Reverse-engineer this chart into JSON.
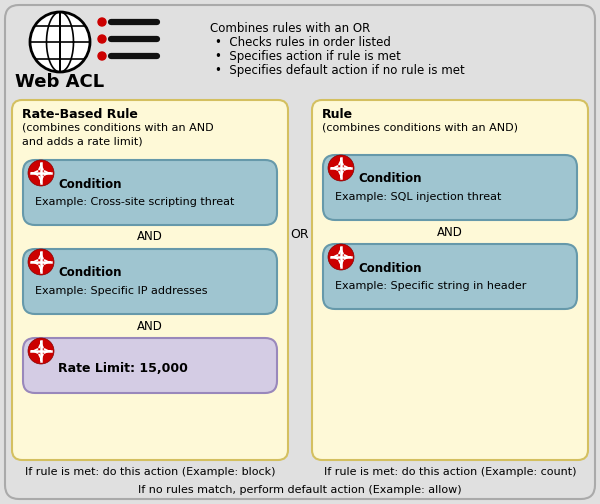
{
  "bg_color": "#e0e0e0",
  "outer_border_color": "#bbbbbb",
  "yellow_box_color": "#fef9d7",
  "yellow_box_border": "#d4c060",
  "blue_box_color": "#9fc5d0",
  "blue_box_border": "#6699aa",
  "purple_box_color": "#d4cce4",
  "purple_box_border": "#9988bb",
  "title": "Web ACL",
  "web_acl_line0": "Combines rules with an OR",
  "web_acl_bullets": [
    "Checks rules in order listed",
    "Specifies action if rule is met",
    "Specifies default action if no rule is met"
  ],
  "left_box_title": "Rate-Based Rule",
  "left_box_sub1": "(combines conditions with an AND",
  "left_box_sub2": "and adds a rate limit)",
  "right_box_title": "Rule",
  "right_box_sub": "(combines conditions with an AND)",
  "left_cond1_title": "Condition",
  "left_cond1_example": "Example: Cross-site scripting threat",
  "left_cond2_title": "Condition",
  "left_cond2_example": "Example: Specific IP addresses",
  "rate_limit_text": "Rate Limit: 15,000",
  "right_cond1_title": "Condition",
  "right_cond1_example": "Example: SQL injection threat",
  "right_cond2_title": "Condition",
  "right_cond2_example": "Example: Specific string in header",
  "and_label": "AND",
  "or_label": "OR",
  "left_action": "If rule is met: do this action (Example: block)",
  "right_action": "If rule is met: do this action (Example: count)",
  "default_action": "If no rules match, perform default action (Example: allow)",
  "red_circle_color": "#cc0000",
  "text_color": "#000000",
  "globe_color": "#000000"
}
